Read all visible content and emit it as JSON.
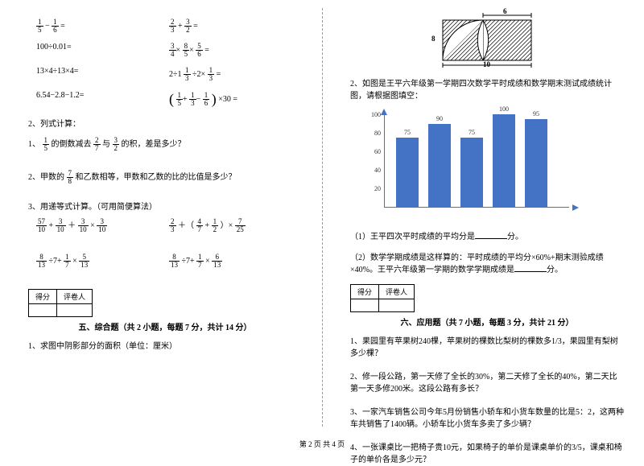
{
  "footer": "第 2 页 共 4 页",
  "left": {
    "eqs": {
      "a1": {
        "f1n": "1",
        "f1d": "5",
        "f2n": "1",
        "f2d": "6",
        "op": "−",
        "tail": "="
      },
      "a2": {
        "f1n": "2",
        "f1d": "3",
        "f2n": "3",
        "f2d": "2",
        "op": "+",
        "tail": "="
      },
      "b1": "100÷0.01=",
      "b2": {
        "f1n": "3",
        "f1d": "4",
        "f2n": "8",
        "f2d": "5",
        "f3n": "5",
        "f3d": "6",
        "tail": "="
      },
      "c1": "13×4÷13×4=",
      "c2": {
        "pre": "2÷1",
        "f1n": "1",
        "f1d": "3",
        "mid": "÷2×",
        "f2n": "1",
        "f2d": "3",
        "tail": "="
      },
      "d1": "6.54−2.8−1.2=",
      "d2": {
        "f1n": "1",
        "f1d": "5",
        "f2n": "1",
        "f2d": "3",
        "f3n": "1",
        "f3d": "6",
        "tail": "×30 ="
      }
    },
    "s2": {
      "head": "2、列式计算：",
      "q1a": "1、",
      "q1_f1": {
        "n": "1",
        "d": "5"
      },
      "q1b": "的倒数减去",
      "q1_f2": {
        "n": "2",
        "d": "7"
      },
      "q1c": "与",
      "q1_f3": {
        "n": "3",
        "d": "2"
      },
      "q1d": "的积，差是多少？",
      "q2a": "2、甲数的",
      "q2_f": {
        "n": "7",
        "d": "8"
      },
      "q2b": "和乙数相等，甲数和乙数的比的比值是多少？"
    },
    "s3": {
      "head": "3、用递等式计算。（可用简便算法）",
      "e1": {
        "f1": {
          "n": "57",
          "d": "10"
        },
        "op1": "+",
        "f2": {
          "n": "3",
          "d": "10"
        },
        "op2": "＋",
        "f3": {
          "n": "3",
          "d": "10"
        },
        "op3": "×",
        "f4": {
          "n": "3",
          "d": "10"
        }
      },
      "e2": {
        "f1": {
          "n": "2",
          "d": "3"
        },
        "mid": "＋（",
        "f2": {
          "n": "4",
          "d": "7"
        },
        "op": "+",
        "f3": {
          "n": "1",
          "d": "2"
        },
        "close": "）×",
        "f4": {
          "n": "7",
          "d": "25"
        }
      },
      "e3": {
        "f1": {
          "n": "8",
          "d": "13"
        },
        "op1": "÷7+",
        "f2": {
          "n": "1",
          "d": "7"
        },
        "op2": "×",
        "f3": {
          "n": "5",
          "d": "13"
        }
      },
      "e4": {
        "f1": {
          "n": "8",
          "d": "13"
        },
        "op1": "÷7+",
        "f2": {
          "n": "1",
          "d": "7"
        },
        "op2": "×",
        "f3": {
          "n": "6",
          "d": "13"
        }
      }
    },
    "score": {
      "c1": "得分",
      "c2": "评卷人"
    },
    "sec5": {
      "title": "五、综合题（共 2 小题，每题 7 分，共计 14 分）",
      "q1": "1、求图中阴影部分的面积（单位：厘米）"
    }
  },
  "right": {
    "geom": {
      "w_label": "6",
      "h_label": "8",
      "base_label": "10"
    },
    "q2_intro": "2、如图是王平六年级第一学期四次数学平时成绩和数学期末测试成绩统计图，请根据图填空：",
    "chart": {
      "type": "bar",
      "ymax": 100,
      "ytick_step": 20,
      "yticks": [
        "20",
        "40",
        "60",
        "80",
        "100"
      ],
      "bar_color": "#4472c4",
      "axis_color": "#4472c4",
      "bars": [
        {
          "label": "75",
          "value": 75
        },
        {
          "label": "90",
          "value": 90
        },
        {
          "label": "75",
          "value": 75
        },
        {
          "label": "100",
          "value": 100
        },
        {
          "label": "95",
          "value": 95
        }
      ]
    },
    "sub1": "（1）王平四次平时成绩的平均分是",
    "sub1_tail": "分。",
    "sub2a": "（2）数学学期成绩是这样算的：平时成绩的平均分×60%+期末测验成绩×40%。王平六年级第一学期的数学学期成绩是",
    "sub2_tail": "分。",
    "score": {
      "c1": "得分",
      "c2": "评卷人"
    },
    "sec6": {
      "title": "六、应用题（共 7 小题，每题 3 分，共计 21 分）",
      "q1": "1、果园里有苹果树240棵，苹果树的棵数比梨树的棵数多1/3，果园里有梨树多少棵？",
      "q2": "2、修一段公路，第一天修了全长的30%，第二天修了全长的40%，第二天比第一天多修200米。这段公路有多长？",
      "q3": "3、一家汽车销售公司今年5月份销售小轿车和小货车数量的比是5：2，这两种车共销售了1400辆。小轿车比小货车多卖了多少辆？",
      "q4": "4、一张课桌比一把椅子贵10元，如果椅子的单价是课桌单价的3/5，课桌和椅子的单价各是多少元？"
    }
  }
}
